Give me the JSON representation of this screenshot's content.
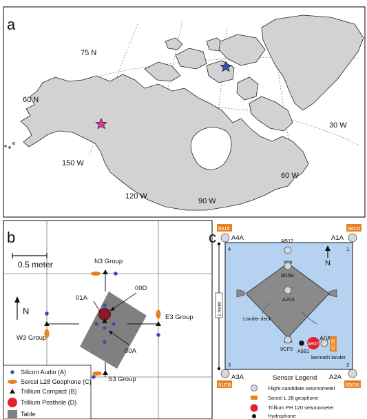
{
  "panel_a": {
    "label": "a",
    "lat_75": "75 N",
    "lat_60": "60 N",
    "lon_150": "150 W",
    "lon_120": "120 W",
    "lon_90": "90 W",
    "lon_60": "60 W",
    "lon_30": "30 W",
    "degree_mark": "°",
    "markers": {
      "star_blue_color": "#3a4fa8",
      "star_pink_color": "#d23c9a"
    }
  },
  "panel_b": {
    "label": "b",
    "scale": "0.5 meter",
    "north": "N",
    "groups": {
      "n3": "N3 Group",
      "e3": "E3 Group",
      "w3": "W3 Group",
      "s3": "S3 Group"
    },
    "labels": {
      "id_01a": "01A",
      "id_00d": "00D",
      "id_00a": "00A"
    },
    "legend": {
      "silicon_audio": "Silicon Audio (A)",
      "geophone": "Sercel L28 Geophone (C)",
      "trillium_compact": "Trillium Compact (B)",
      "trillium_posthole": "Trillium Posthole (D)",
      "table": "Table"
    },
    "colors": {
      "blue": "#3a4fa8",
      "orange": "#e8821e",
      "red": "#c81e2a",
      "table": "#808080"
    }
  },
  "panel_c": {
    "label": "c",
    "tags": {
      "t9315": "9315",
      "t98c0": "98C0",
      "t91eb": "91EB",
      "t8dd8": "8DD8",
      "t9d7b": "9D7B"
    },
    "corners": {
      "a4a": "A4A",
      "a1a": "A1A",
      "a3a": "A3A",
      "a2a": "A2A"
    },
    "corner_nums": {
      "c4": "4",
      "c1": "1",
      "c3": "3",
      "c2": "2"
    },
    "north": "N",
    "meter": "1 meter",
    "sensors": {
      "ab12": "AB12",
      "d5b": "9D5B",
      "a204": "A204",
      "cf5": "9CF5",
      "a0a": "A0A",
      "ab07": "AB07",
      "a0b1": "A0B1"
    },
    "lander_deck": "Lander deck",
    "beneath_lander": "beneath lander",
    "legend": {
      "title": "Sensor Legend",
      "flight": "Flight candidate seismometer",
      "sercel": "Sercel L 28 geophone",
      "trillium": "Trillium PH 120 seismometer",
      "hydrophone": "Hydrophone"
    },
    "colors": {
      "water": "#b5d3f0",
      "deck": "#8a8a8a",
      "orange": "#e8821e",
      "red": "#e0232f"
    }
  }
}
